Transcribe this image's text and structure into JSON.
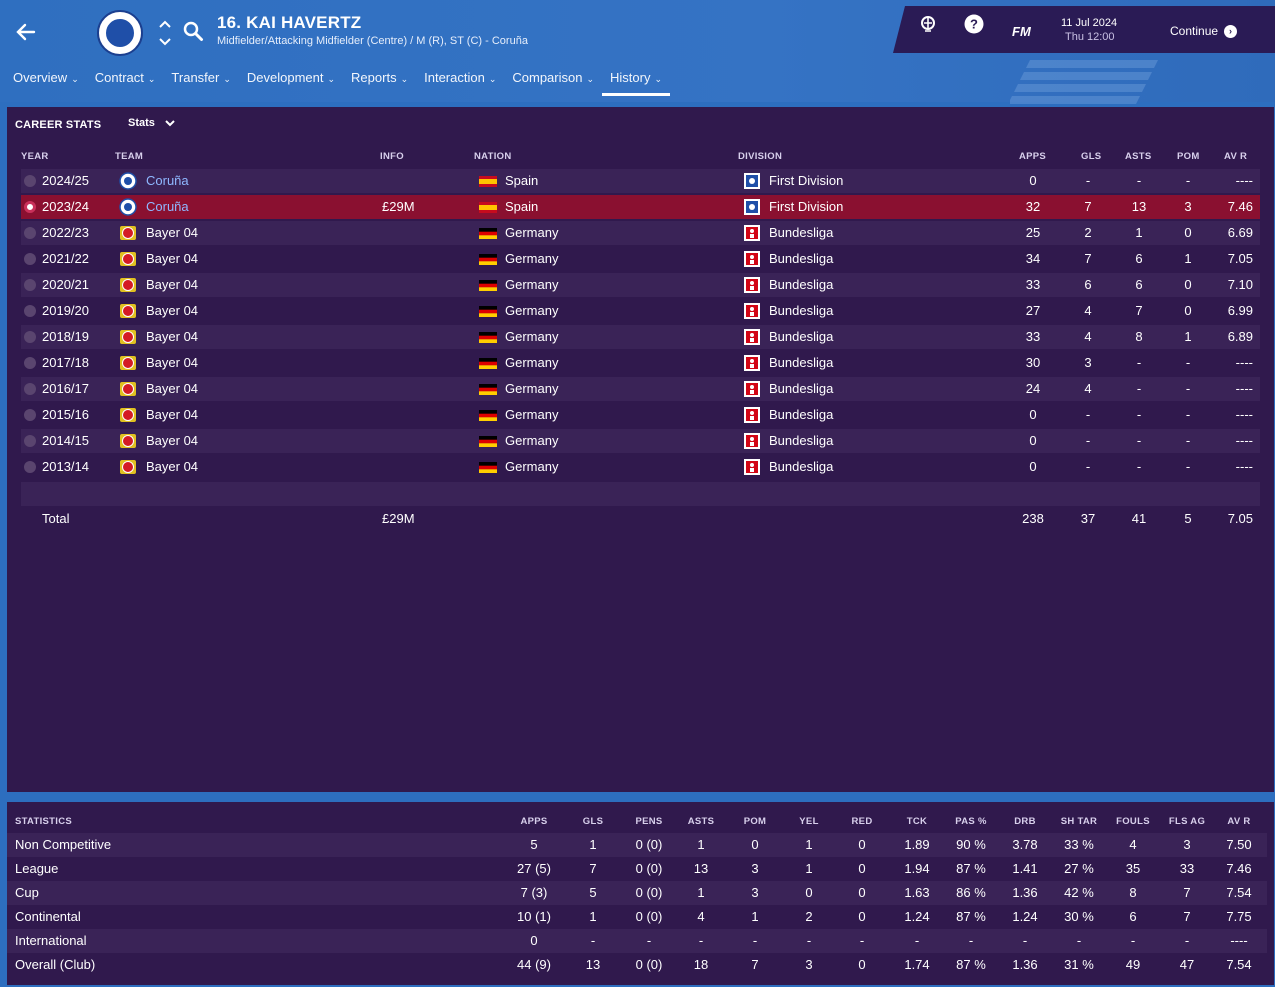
{
  "header": {
    "player_name": "16. KAI HAVERTZ",
    "player_sub": "Midfielder/Attacking Midfielder (Centre) / M (R), ST (C) - Coruña",
    "date": "11 Jul 2024",
    "time": "Thu 12:00",
    "fm": "FM",
    "continue_label": "Continue"
  },
  "tabs": [
    "Overview",
    "Contract",
    "Transfer",
    "Development",
    "Reports",
    "Interaction",
    "Comparison",
    "History"
  ],
  "active_tab": "History",
  "career": {
    "title": "CAREER STATS",
    "view": "Stats",
    "headers": {
      "year": "YEAR",
      "team": "TEAM",
      "info": "INFO",
      "nation": "NATION",
      "division": "DIVISION",
      "apps": "APPS",
      "gls": "GLS",
      "asts": "ASTS",
      "pom": "POM",
      "avr": "AV R"
    },
    "rows": [
      {
        "year": "2024/25",
        "team": "Coruña",
        "info": "",
        "nation": "Spain",
        "division": "First Division",
        "apps": "0",
        "gls": "-",
        "asts": "-",
        "pom": "-",
        "avr": "----"
      },
      {
        "year": "2023/24",
        "team": "Coruña",
        "info": "£29M",
        "nation": "Spain",
        "division": "First Division",
        "apps": "32",
        "gls": "7",
        "asts": "13",
        "pom": "3",
        "avr": "7.46"
      },
      {
        "year": "2022/23",
        "team": "Bayer 04",
        "info": "",
        "nation": "Germany",
        "division": "Bundesliga",
        "apps": "25",
        "gls": "2",
        "asts": "1",
        "pom": "0",
        "avr": "6.69"
      },
      {
        "year": "2021/22",
        "team": "Bayer 04",
        "info": "",
        "nation": "Germany",
        "division": "Bundesliga",
        "apps": "34",
        "gls": "7",
        "asts": "6",
        "pom": "1",
        "avr": "7.05"
      },
      {
        "year": "2020/21",
        "team": "Bayer 04",
        "info": "",
        "nation": "Germany",
        "division": "Bundesliga",
        "apps": "33",
        "gls": "6",
        "asts": "6",
        "pom": "0",
        "avr": "7.10"
      },
      {
        "year": "2019/20",
        "team": "Bayer 04",
        "info": "",
        "nation": "Germany",
        "division": "Bundesliga",
        "apps": "27",
        "gls": "4",
        "asts": "7",
        "pom": "0",
        "avr": "6.99"
      },
      {
        "year": "2018/19",
        "team": "Bayer 04",
        "info": "",
        "nation": "Germany",
        "division": "Bundesliga",
        "apps": "33",
        "gls": "4",
        "asts": "8",
        "pom": "1",
        "avr": "6.89"
      },
      {
        "year": "2017/18",
        "team": "Bayer 04",
        "info": "",
        "nation": "Germany",
        "division": "Bundesliga",
        "apps": "30",
        "gls": "3",
        "asts": "-",
        "pom": "-",
        "avr": "----"
      },
      {
        "year": "2016/17",
        "team": "Bayer 04",
        "info": "",
        "nation": "Germany",
        "division": "Bundesliga",
        "apps": "24",
        "gls": "4",
        "asts": "-",
        "pom": "-",
        "avr": "----"
      },
      {
        "year": "2015/16",
        "team": "Bayer 04",
        "info": "",
        "nation": "Germany",
        "division": "Bundesliga",
        "apps": "0",
        "gls": "-",
        "asts": "-",
        "pom": "-",
        "avr": "----"
      },
      {
        "year": "2014/15",
        "team": "Bayer 04",
        "info": "",
        "nation": "Germany",
        "division": "Bundesliga",
        "apps": "0",
        "gls": "-",
        "asts": "-",
        "pom": "-",
        "avr": "----"
      },
      {
        "year": "2013/14",
        "team": "Bayer 04",
        "info": "",
        "nation": "Germany",
        "division": "Bundesliga",
        "apps": "0",
        "gls": "-",
        "asts": "-",
        "pom": "-",
        "avr": "----"
      }
    ],
    "total": {
      "label": "Total",
      "info": "£29M",
      "apps": "238",
      "gls": "37",
      "asts": "41",
      "pom": "5",
      "avr": "7.05"
    }
  },
  "statistics": {
    "headers": [
      "STATISTICS",
      "APPS",
      "GLS",
      "PENS",
      "ASTS",
      "POM",
      "YEL",
      "RED",
      "TCK",
      "PAS %",
      "DRB",
      "SH TAR",
      "FOULS",
      "FLS AG",
      "AV R"
    ],
    "rows": [
      [
        "Non Competitive",
        "5",
        "1",
        "0 (0)",
        "1",
        "0",
        "1",
        "0",
        "1.89",
        "90 %",
        "3.78",
        "33 %",
        "4",
        "3",
        "7.50"
      ],
      [
        "League",
        "27 (5)",
        "7",
        "0 (0)",
        "13",
        "3",
        "1",
        "0",
        "1.94",
        "87 %",
        "1.41",
        "27 %",
        "35",
        "33",
        "7.46"
      ],
      [
        "Cup",
        "7 (3)",
        "5",
        "0 (0)",
        "1",
        "3",
        "0",
        "0",
        "1.63",
        "86 %",
        "1.36",
        "42 %",
        "8",
        "7",
        "7.54"
      ],
      [
        "Continental",
        "10 (1)",
        "1",
        "0 (0)",
        "4",
        "1",
        "2",
        "0",
        "1.24",
        "87 %",
        "1.24",
        "30 %",
        "6",
        "7",
        "7.75"
      ],
      [
        "International",
        "0",
        "-",
        "-",
        "-",
        "-",
        "-",
        "-",
        "-",
        "-",
        "-",
        "-",
        "-",
        "-",
        "----"
      ],
      [
        "Overall (Club)",
        "44 (9)",
        "13",
        "0 (0)",
        "18",
        "7",
        "3",
        "0",
        "1.74",
        "87 %",
        "1.36",
        "31 %",
        "49",
        "47",
        "7.54"
      ]
    ]
  }
}
